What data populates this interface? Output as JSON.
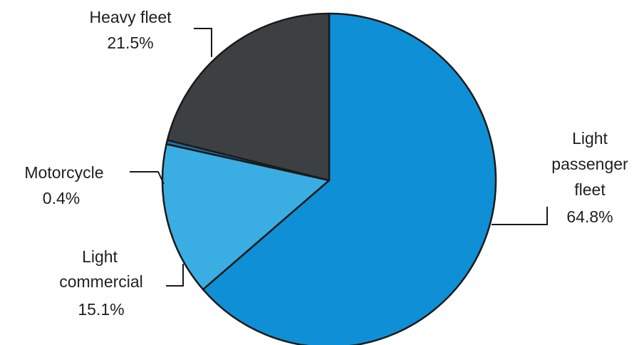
{
  "chart_data": {
    "type": "pie",
    "title": "",
    "start_angle_deg": 0,
    "direction": "clockwise",
    "slices": [
      {
        "label": "Light passenger fleet",
        "label_lines": [
          "Light",
          "passenger",
          "fleet"
        ],
        "value": 64.8,
        "value_text": "64.8%",
        "color": "#0f8fd6"
      },
      {
        "label": "Light commercial",
        "label_lines": [
          "Light",
          "commercial"
        ],
        "value": 15.1,
        "value_text": "15.1%",
        "color": "#3aaee3"
      },
      {
        "label": "Motorcycle",
        "label_lines": [
          "Motorcycle"
        ],
        "value": 0.4,
        "value_text": "0.4%",
        "color": "#1e6fa8"
      },
      {
        "label": "Heavy fleet",
        "label_lines": [
          "Heavy fleet"
        ],
        "value": 21.5,
        "value_text": "21.5%",
        "color": "#3d4043"
      }
    ]
  }
}
